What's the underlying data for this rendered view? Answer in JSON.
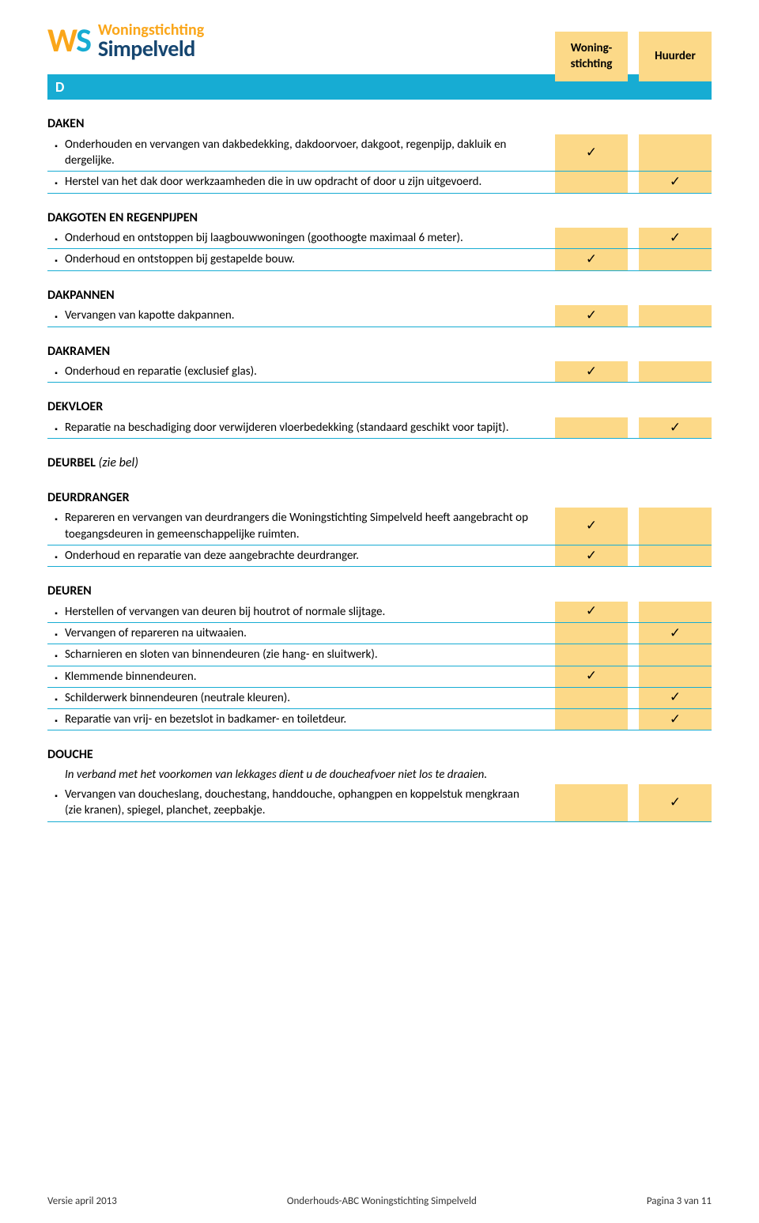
{
  "colors": {
    "blue": "#17acd3",
    "yellow": "#fcd988",
    "orange": "#faa61a",
    "darkblue": "#164670"
  },
  "logo": {
    "w": "W",
    "s": "S",
    "top": "Woningstichting",
    "bottom": "Simpelveld"
  },
  "header": {
    "col1": "Woning-stichting",
    "col2": "Huurder"
  },
  "section_letter": "D",
  "groups": [
    {
      "title": "DAKEN",
      "rows": [
        {
          "text": "Onderhouden en vervangen van dakbedekking, dakdoorvoer, dakgoot, regenpijp, dakluik en dergelijke.",
          "c1": true,
          "c2": false
        },
        {
          "text": "Herstel van het dak door werkzaamheden die in uw opdracht of door u zijn uitgevoerd.",
          "c1": false,
          "c2": true
        }
      ]
    },
    {
      "title": "DAKGOTEN EN REGENPIJPEN",
      "rows": [
        {
          "text": "Onderhoud en ontstoppen bij laagbouwwoningen (goothoogte maximaal 6 meter).",
          "c1": false,
          "c2": true
        },
        {
          "text": "Onderhoud en ontstoppen bij gestapelde bouw.",
          "c1": true,
          "c2": false
        }
      ]
    },
    {
      "title": "DAKPANNEN",
      "rows": [
        {
          "text": "Vervangen van kapotte dakpannen.",
          "c1": true,
          "c2": false
        }
      ]
    },
    {
      "title": "DAKRAMEN",
      "rows": [
        {
          "text": "Onderhoud en reparatie (exclusief glas).",
          "c1": true,
          "c2": false
        }
      ]
    },
    {
      "title": "DEKVLOER",
      "rows": [
        {
          "text": "Reparatie na beschadiging door verwijderen vloerbedekking (standaard geschikt voor tapijt).",
          "c1": false,
          "c2": true
        }
      ]
    },
    {
      "title": "DEURBEL (zie bel)",
      "italic_suffix": true,
      "rows": []
    },
    {
      "title": "DEURDRANGER",
      "rows": [
        {
          "text": "Repareren en vervangen van deurdrangers die Woningstichting Simpelveld heeft aangebracht op toegangsdeuren in gemeenschappelijke ruimten.",
          "c1": true,
          "c2": false
        },
        {
          "text": "Onderhoud en reparatie van deze aangebrachte deurdranger.",
          "c1": true,
          "c2": false
        }
      ]
    },
    {
      "title": "DEUREN",
      "rows": [
        {
          "text": "Herstellen of vervangen van deuren bij houtrot of normale slijtage.",
          "c1": true,
          "c2": false
        },
        {
          "text": "Vervangen of repareren na uitwaaien.",
          "c1": false,
          "c2": true
        },
        {
          "text": "Scharnieren en sloten van binnendeuren (zie hang- en sluitwerk).",
          "c1": false,
          "c2": false
        },
        {
          "text": "Klemmende binnendeuren.",
          "c1": true,
          "c2": false
        },
        {
          "text": "Schilderwerk binnendeuren (neutrale kleuren).",
          "c1": false,
          "c2": true
        },
        {
          "text": "Reparatie van vrij- en bezetslot in badkamer- en toiletdeur.",
          "c1": false,
          "c2": true
        }
      ]
    },
    {
      "title": "DOUCHE",
      "note": "In verband met het voorkomen van lekkages dient u de doucheafvoer niet los te draaien.",
      "rows": [
        {
          "text": "Vervangen van doucheslang, douchestang, handdouche, ophangpen en koppelstuk mengkraan (zie kranen), spiegel, planchet, zeepbakje.",
          "c1": false,
          "c2": true
        }
      ]
    }
  ],
  "footer": {
    "left": "Versie april 2013",
    "center": "Onderhouds-ABC  Woningstichting Simpelveld",
    "right": "Pagina 3 van 11"
  }
}
